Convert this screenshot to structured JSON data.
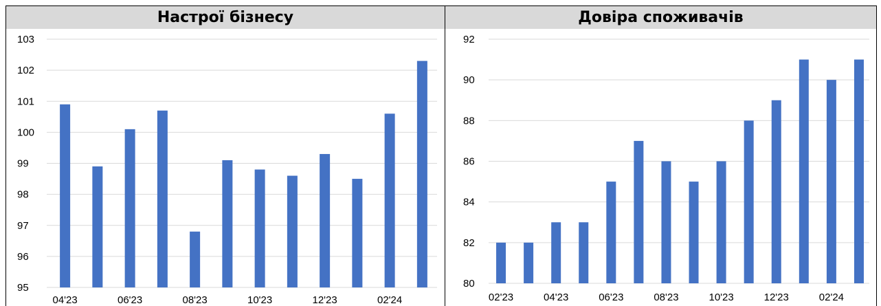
{
  "chart_data": [
    {
      "type": "bar",
      "title": "Настрої бізнесу",
      "categories": [
        "04'23",
        "05'23",
        "06'23",
        "07'23",
        "08'23",
        "09'23",
        "10'23",
        "11'23",
        "12'23",
        "01'24",
        "02'24",
        "03'24"
      ],
      "x_tick_labels": [
        "04'23",
        "06'23",
        "08'23",
        "10'23",
        "12'23",
        "02'24"
      ],
      "values": [
        100.9,
        98.9,
        100.1,
        100.7,
        96.8,
        99.1,
        98.8,
        98.6,
        99.3,
        98.5,
        100.6,
        102.3
      ],
      "y_ticks": [
        95,
        96,
        97,
        98,
        99,
        100,
        101,
        102,
        103
      ],
      "ylim": [
        95,
        103
      ],
      "grid": true,
      "bar_color": "#4472c4"
    },
    {
      "type": "bar",
      "title": "Довіра споживачів",
      "categories": [
        "02'23",
        "03'23",
        "04'23",
        "05'23",
        "06'23",
        "07'23",
        "08'23",
        "09'23",
        "10'23",
        "11'23",
        "12'23",
        "01'24",
        "02'24",
        "03'24"
      ],
      "x_tick_labels": [
        "02'23",
        "04'23",
        "06'23",
        "08'23",
        "10'23",
        "12'23",
        "02'24"
      ],
      "values": [
        82,
        82,
        83,
        83,
        85,
        87,
        86,
        85,
        86,
        88,
        89,
        91,
        90,
        91
      ],
      "y_ticks": [
        80,
        82,
        84,
        86,
        88,
        90,
        92
      ],
      "ylim": [
        80,
        92
      ],
      "grid": true,
      "bar_color": "#4472c4"
    }
  ]
}
